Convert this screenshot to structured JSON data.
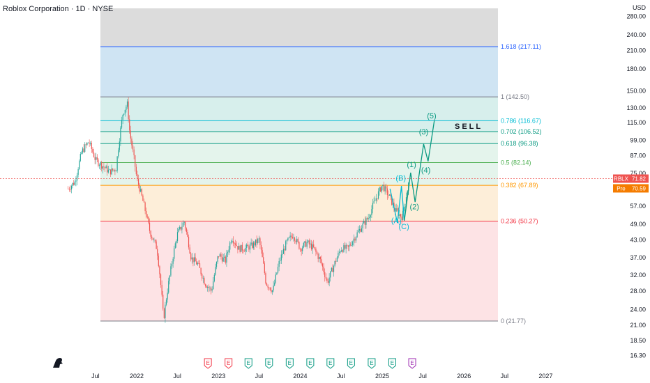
{
  "header": {
    "title": "Roblox Corporation · 1D · NYSE",
    "currency": "USD"
  },
  "colors": {
    "up": "#26a69a",
    "down": "#ef5350",
    "wave_green": "#089981",
    "wave_cyan": "#00bcd4",
    "fib_top_zone": "#dcdcdc",
    "blue_zone": "#cfe4f3",
    "teal_zone": "#d7efec",
    "green_zone": "#e4f4ec",
    "orange_zone": "#fdeed9",
    "red_zone": "#fde3e5"
  },
  "badges": [
    {
      "label": "RBLX",
      "value": "71.82",
      "color": "#ef5350"
    },
    {
      "label": "Pre",
      "value": "70.59",
      "color": "#f57c00"
    }
  ],
  "chart_data": {
    "type": "candlestick",
    "title": "Roblox Corporation · 1D · NYSE",
    "y_scale": "log",
    "ylim": [
      16.3,
      280.0
    ],
    "y_ticks": [
      "16.30",
      "18.50",
      "21.00",
      "24.00",
      "28.00",
      "32.00",
      "37.00",
      "43.00",
      "49.00",
      "57.00",
      "66.00",
      "75.00",
      "87.00",
      "99.00",
      "115.00",
      "130.00",
      "150.00",
      "180.00",
      "210.00",
      "240.00",
      "280.00"
    ],
    "x_ticks": [
      "Jul",
      "2022",
      "Jul",
      "2023",
      "Jul",
      "2024",
      "Jul",
      "2025",
      "Jul",
      "2026",
      "Jul",
      "2027"
    ],
    "price_path": [
      [
        "2021-03",
        66
      ],
      [
        "2021-04",
        70
      ],
      [
        "2021-05",
        90
      ],
      [
        "2021-06",
        98
      ],
      [
        "2021-07",
        84
      ],
      [
        "2021-08",
        80
      ],
      [
        "2021-09",
        76
      ],
      [
        "2021-10",
        78
      ],
      [
        "2021-11",
        125
      ],
      [
        "2021-11-20",
        134
      ],
      [
        "2021-12",
        105
      ],
      [
        "2022-01",
        72
      ],
      [
        "2022-02",
        58
      ],
      [
        "2022-03",
        46
      ],
      [
        "2022-04",
        40
      ],
      [
        "2022-05",
        22
      ],
      [
        "2022-06",
        33
      ],
      [
        "2022-07",
        45
      ],
      [
        "2022-08",
        50
      ],
      [
        "2022-09",
        37
      ],
      [
        "2022-10",
        35
      ],
      [
        "2022-11",
        30
      ],
      [
        "2022-12",
        28
      ],
      [
        "2023-01",
        38
      ],
      [
        "2023-02",
        36
      ],
      [
        "2023-03",
        44
      ],
      [
        "2023-04",
        40
      ],
      [
        "2023-05",
        40
      ],
      [
        "2023-06",
        41
      ],
      [
        "2023-07",
        43
      ],
      [
        "2023-08",
        30
      ],
      [
        "2023-09",
        28
      ],
      [
        "2023-10",
        36
      ],
      [
        "2023-11",
        42
      ],
      [
        "2023-12",
        45
      ],
      [
        "2024-01",
        40
      ],
      [
        "2024-02",
        42
      ],
      [
        "2024-03",
        40
      ],
      [
        "2024-04",
        36
      ],
      [
        "2024-05",
        30
      ],
      [
        "2024-06",
        35
      ],
      [
        "2024-07",
        40
      ],
      [
        "2024-08",
        40
      ],
      [
        "2024-09",
        44
      ],
      [
        "2024-10",
        48
      ],
      [
        "2024-11",
        52
      ],
      [
        "2024-12",
        60
      ],
      [
        "2025-01",
        68
      ],
      [
        "2025-02",
        62
      ],
      [
        "2025-03",
        55
      ],
      [
        "2025-04",
        52
      ],
      [
        "2025-05",
        70
      ]
    ],
    "fib_levels": [
      {
        "ratio": "1.618",
        "value": 217.11,
        "label": "1.618 (217.11)",
        "color": "#2962ff"
      },
      {
        "ratio": "1",
        "value": 142.5,
        "label": "1 (142.50)",
        "color": "#787b86"
      },
      {
        "ratio": "0.786",
        "value": 116.67,
        "label": "0.786 (116.67)",
        "color": "#00bcd4"
      },
      {
        "ratio": "0.702",
        "value": 106.52,
        "label": "0.702 (106.52)",
        "color": "#089981"
      },
      {
        "ratio": "0.618",
        "value": 96.38,
        "label": "0.618 (96.38)",
        "color": "#089981"
      },
      {
        "ratio": "0.5",
        "value": 82.14,
        "label": "0.5 (82.14)",
        "color": "#4caf50"
      },
      {
        "ratio": "0.382",
        "value": 67.89,
        "label": "0.382 (67.89)",
        "color": "#ff9800"
      },
      {
        "ratio": "0.236",
        "value": 50.27,
        "label": "0.236 (50.27)",
        "color": "#f23645"
      },
      {
        "ratio": "0",
        "value": 21.77,
        "label": "0 (21.77)",
        "color": "#787b86"
      }
    ],
    "waves": [
      {
        "label": "(A)",
        "date": "2025-03-05",
        "price": 49.5,
        "color": "#00bcd4"
      },
      {
        "label": "(B)",
        "date": "2025-03-25",
        "price": 70.5,
        "color": "#00bcd4"
      },
      {
        "label": "(C)",
        "date": "2025-04-08",
        "price": 47.0,
        "color": "#00bcd4"
      },
      {
        "label": "(1)",
        "date": "2025-05-12",
        "price": 79.0,
        "color": "#089981"
      },
      {
        "label": "(2)",
        "date": "2025-05-25",
        "price": 55.5,
        "color": "#089981"
      },
      {
        "label": "(3)",
        "date": "2025-07-05",
        "price": 104.0,
        "color": "#089981"
      },
      {
        "label": "(4)",
        "date": "2025-07-15",
        "price": 75.5,
        "color": "#089981"
      },
      {
        "label": "(5)",
        "date": "2025-08-10",
        "price": 119.0,
        "color": "#089981"
      }
    ],
    "projection_path": [
      [
        "2025-02-05",
        66
      ],
      [
        "2025-03-10",
        49.5
      ],
      [
        "2025-03-28",
        67.5
      ],
      [
        "2025-04-10",
        50.5
      ],
      [
        "2025-05-08",
        75.5
      ],
      [
        "2025-05-28",
        59
      ],
      [
        "2025-07-05",
        96
      ],
      [
        "2025-07-25",
        83
      ],
      [
        "2025-08-22",
        117
      ]
    ],
    "annotation": {
      "text": "SELL",
      "near_level": "0.702"
    },
    "events": [
      {
        "date": "2022-11-15",
        "label": "E",
        "kind": "red"
      },
      {
        "date": "2023-02-15",
        "label": "E",
        "kind": "red"
      },
      {
        "date": "2023-05-15",
        "label": "E",
        "kind": "green"
      },
      {
        "date": "2023-08-15",
        "label": "E",
        "kind": "green"
      },
      {
        "date": "2023-11-15",
        "label": "E",
        "kind": "green"
      },
      {
        "date": "2024-02-15",
        "label": "E",
        "kind": "green"
      },
      {
        "date": "2024-05-15",
        "label": "E",
        "kind": "green"
      },
      {
        "date": "2024-08-15",
        "label": "E",
        "kind": "green"
      },
      {
        "date": "2024-11-15",
        "label": "E",
        "kind": "green"
      },
      {
        "date": "2025-02-15",
        "label": "E",
        "kind": "green"
      },
      {
        "date": "2025-05-15",
        "label": "E",
        "kind": "purple"
      }
    ],
    "last_price": 71.82,
    "pre_price": 70.59,
    "grid": false,
    "legend": "none"
  }
}
